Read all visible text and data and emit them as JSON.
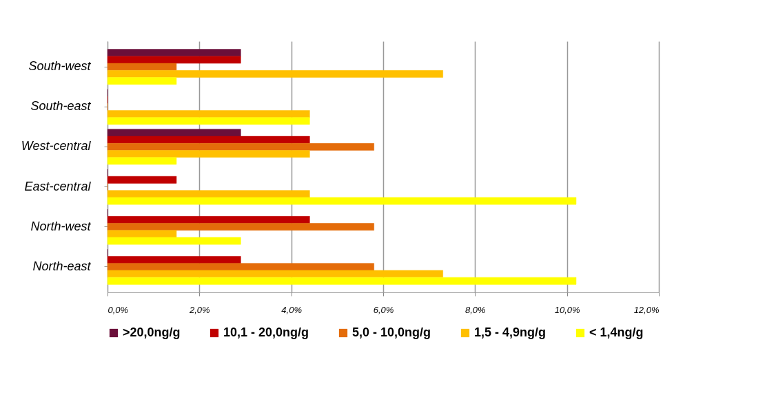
{
  "chart_data": {
    "type": "bar",
    "orientation": "horizontal",
    "categories": [
      "South-west",
      "South-east",
      "West-central",
      "East-central",
      "North-west",
      "North-east"
    ],
    "series": [
      {
        "name": ">20,0ng/g",
        "color": "#6b0f3a",
        "values": [
          2.9,
          0,
          2.9,
          0,
          0,
          0
        ]
      },
      {
        "name": "10,1 - 20,0ng/g",
        "color": "#c00000",
        "values": [
          2.9,
          0,
          4.4,
          1.5,
          4.4,
          2.9
        ]
      },
      {
        "name": "5,0 - 10,0ng/g",
        "color": "#e46c0a",
        "values": [
          1.5,
          0,
          5.8,
          0,
          5.8,
          5.8
        ]
      },
      {
        "name": "1,5 - 4,9ng/g",
        "color": "#ffc000",
        "values": [
          7.3,
          4.4,
          4.4,
          4.4,
          1.5,
          7.3
        ]
      },
      {
        "name": "< 1,4ng/g",
        "color": "#ffff00",
        "values": [
          1.5,
          4.4,
          1.5,
          10.2,
          2.9,
          10.2
        ]
      }
    ],
    "xlim": [
      0,
      12
    ],
    "xticks": [
      {
        "value": 0,
        "label": "0,0%"
      },
      {
        "value": 2,
        "label": "2,0%"
      },
      {
        "value": 4,
        "label": "4,0%"
      },
      {
        "value": 6,
        "label": "6,0%"
      },
      {
        "value": 8,
        "label": "8,0%"
      },
      {
        "value": 10,
        "label": "10,0%"
      },
      {
        "value": 12,
        "label": "12,0%"
      }
    ],
    "grid": "x",
    "legend": "bottom"
  }
}
